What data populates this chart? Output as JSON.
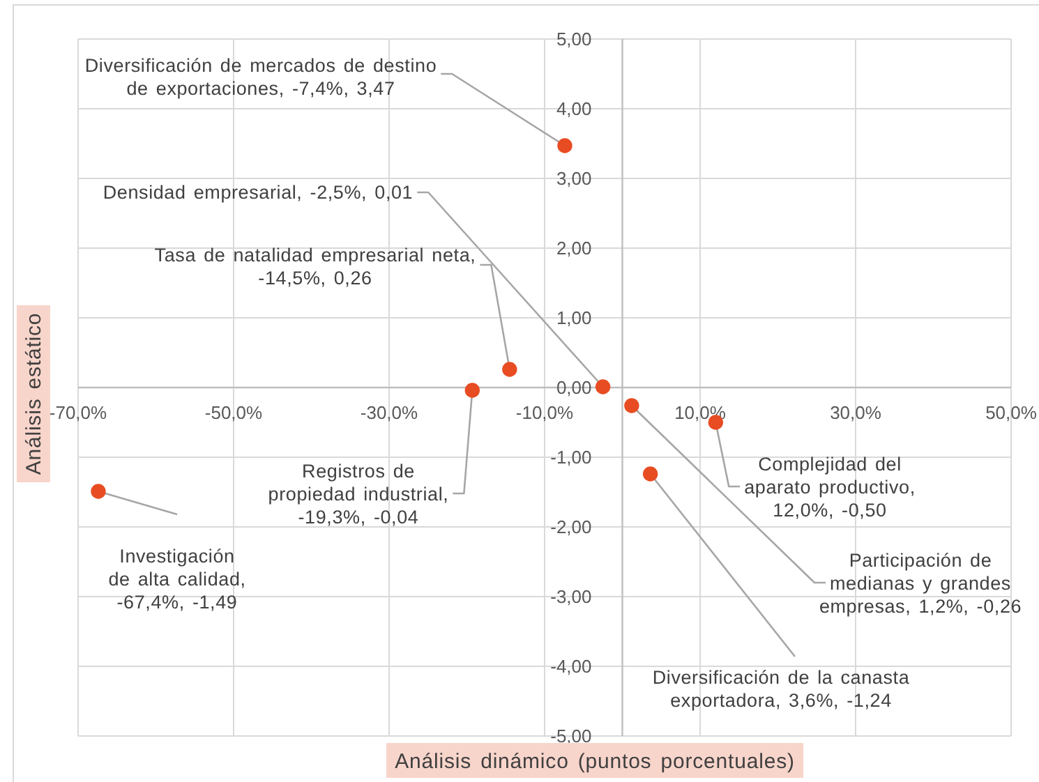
{
  "chart_data": {
    "type": "scatter",
    "xlabel": "Análisis dinámico (puntos porcentuales)",
    "ylabel": "Análisis estático",
    "xlim": [
      -70,
      50
    ],
    "ylim": [
      -5,
      5
    ],
    "xticks": [
      {
        "value": -70,
        "label": "-70,0%"
      },
      {
        "value": -50,
        "label": "-50,0%"
      },
      {
        "value": -30,
        "label": "-30,0%"
      },
      {
        "value": -10,
        "label": "-10,0%"
      },
      {
        "value": 10,
        "label": "10,0%"
      },
      {
        "value": 30,
        "label": "30,0%"
      },
      {
        "value": 50,
        "label": "50,0%"
      }
    ],
    "yticks": [
      {
        "value": 5,
        "label": "5,00"
      },
      {
        "value": 4,
        "label": "4,00"
      },
      {
        "value": 3,
        "label": "3,00"
      },
      {
        "value": 2,
        "label": "2,00"
      },
      {
        "value": 1,
        "label": "1,00"
      },
      {
        "value": 0,
        "label": "0,00"
      },
      {
        "value": -1,
        "label": "-1,00"
      },
      {
        "value": -2,
        "label": "-2,00"
      },
      {
        "value": -3,
        "label": "-3,00"
      },
      {
        "value": -4,
        "label": "-4,00"
      },
      {
        "value": -5,
        "label": "-5,00"
      }
    ],
    "grid": true,
    "marker": "circle",
    "series": [
      {
        "color": "#e84c22",
        "x": [
          -7.4,
          -2.5,
          -14.5,
          -19.3,
          -67.4,
          12.0,
          1.2,
          3.6
        ],
        "values": [
          3.47,
          0.01,
          0.26,
          -0.04,
          -1.49,
          -0.5,
          -0.26,
          -1.24
        ],
        "value_labels": [
          "Diversificación de mercados de destino de exportaciones, -7,4%, 3,47",
          "Densidad empresarial, -2,5%, 0,01",
          "Tasa de natalidad empresarial neta, -14,5%, 0,26",
          "Registros de propiedad industrial, -19,3%, -0,04",
          "Investigación de alta calidad, -67,4%, -1,49",
          "Complejidad del aparato productivo, 12,0%, -0,50",
          "Participación de medianas y grandes empresas, 1,2%, -0,26",
          "Diversificación de la canasta exportadora, 3,6%, -1,24"
        ]
      }
    ]
  }
}
